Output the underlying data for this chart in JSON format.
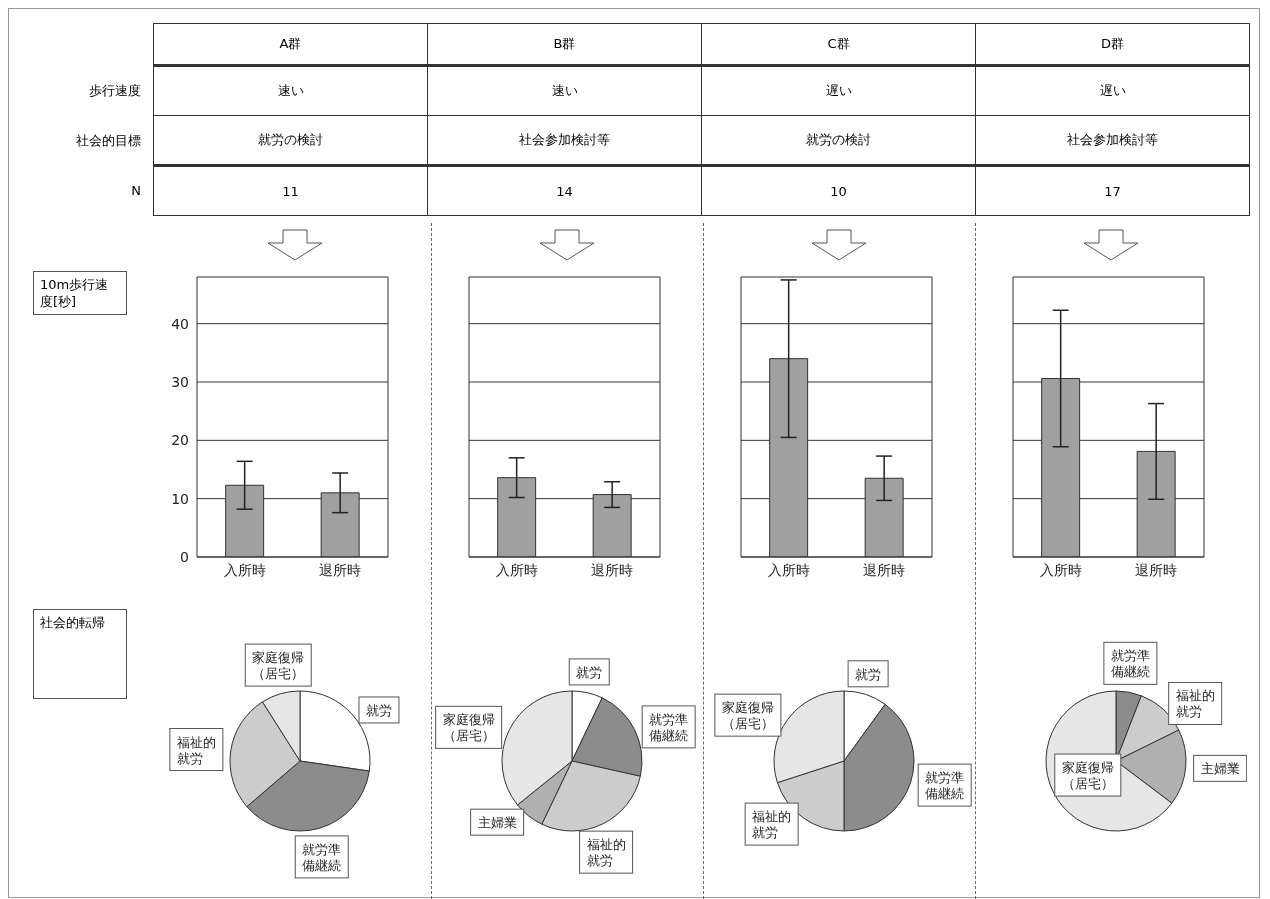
{
  "chart_data": [
    {
      "type": "other",
      "categories": [
        "A群",
        "B群",
        "C群",
        "D群"
      ],
      "y_categories": [
        "歩行速度",
        "社会的目標",
        "N"
      ],
      "cell_labels": [
        [
          "速い",
          "速い",
          "遅い",
          "遅い"
        ],
        [
          "就労の検討",
          "社会参加検討等",
          "就労の検討",
          "社会参加検討等"
        ],
        [
          "11",
          "14",
          "10",
          "17"
        ]
      ]
    },
    {
      "type": "bar",
      "ylabel": "10m歩行速度[秒]",
      "categories": [
        "入所時",
        "退所時"
      ],
      "values": [
        12.3,
        11.0
      ],
      "errors": [
        4.1,
        3.4
      ],
      "color": "#a0a0a0",
      "ylim": [
        0,
        48
      ],
      "yticks": [
        0,
        10,
        20,
        30,
        40
      ],
      "grid": "y"
    },
    {
      "type": "bar",
      "categories": [
        "入所時",
        "退所時"
      ],
      "values": [
        13.6,
        10.7
      ],
      "errors": [
        3.4,
        2.2
      ],
      "color": "#a0a0a0",
      "ylim": [
        0,
        48
      ],
      "yticks": [
        0,
        10,
        20,
        30,
        40
      ],
      "grid": "y",
      "tick_labels": "x"
    },
    {
      "type": "bar",
      "categories": [
        "入所時",
        "退所時"
      ],
      "values": [
        34.0,
        13.5
      ],
      "errors": [
        13.5,
        3.8
      ],
      "color": "#a0a0a0",
      "ylim": [
        0,
        48
      ],
      "yticks": [
        0,
        10,
        20,
        30,
        40
      ],
      "grid": "y",
      "tick_labels": "x"
    },
    {
      "type": "bar",
      "categories": [
        "入所時",
        "退所時"
      ],
      "values": [
        30.6,
        18.1
      ],
      "errors": [
        11.7,
        8.2
      ],
      "color": "#a0a0a0",
      "ylim": [
        0,
        48
      ],
      "yticks": [
        0,
        10,
        20,
        30,
        40
      ],
      "grid": "y",
      "tick_labels": "x"
    },
    {
      "type": "pie",
      "title": "社会的転帰",
      "categories": [
        "就労",
        "就労準備継続",
        "福祉的就労",
        "家庭復帰（居宅）"
      ],
      "values": [
        27.3,
        36.4,
        27.3,
        9.0
      ],
      "colors": [
        "#ffffff",
        "#8c8c8c",
        "#cccccc",
        "#e6e6e6"
      ]
    },
    {
      "type": "pie",
      "categories": [
        "就労",
        "就労準備継続",
        "福祉的就労",
        "主婦業",
        "家庭復帰（居宅）"
      ],
      "values": [
        7.1,
        21.4,
        28.6,
        7.1,
        35.8
      ],
      "colors": [
        "#ffffff",
        "#8c8c8c",
        "#cccccc",
        "#b0b0b0",
        "#e6e6e6"
      ]
    },
    {
      "type": "pie",
      "categories": [
        "就労",
        "就労準備継続",
        "福祉的就労",
        "家庭復帰（居宅）"
      ],
      "values": [
        10,
        40,
        20,
        30
      ],
      "colors": [
        "#ffffff",
        "#8c8c8c",
        "#cccccc",
        "#e6e6e6"
      ]
    },
    {
      "type": "pie",
      "categories": [
        "就労準備継続",
        "福祉的就労",
        "主婦業",
        "家庭復帰（居宅）"
      ],
      "values": [
        5.9,
        11.8,
        17.6,
        64.7
      ],
      "colors": [
        "#8c8c8c",
        "#cccccc",
        "#b0b0b0",
        "#e6e6e6"
      ]
    }
  ]
}
